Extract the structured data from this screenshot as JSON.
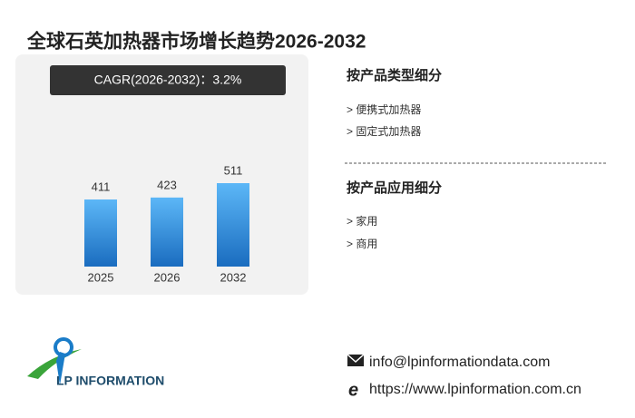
{
  "chart_data": {
    "type": "bar",
    "title": "全球石英加热器市场增长趋势2026-2032",
    "subtitle": "CAGR(2026-2032)：3.2%",
    "categories": [
      "2025",
      "2026",
      "2032"
    ],
    "values": [
      411,
      423,
      511
    ],
    "gradient": [
      "#5cb7f7",
      "#1a6cbf"
    ]
  },
  "segments": [
    {
      "title": "按产品类型细分",
      "items": [
        "> 便携式加热器",
        "> 固定式加热器"
      ]
    },
    {
      "title": "按产品应用细分",
      "items": [
        "> 家用",
        "> 商用"
      ]
    }
  ],
  "logo": "LP INFORMATION",
  "contact": {
    "email": "info@lpinformationdata.com",
    "website": "https://www.lpinformation.com.cn"
  }
}
